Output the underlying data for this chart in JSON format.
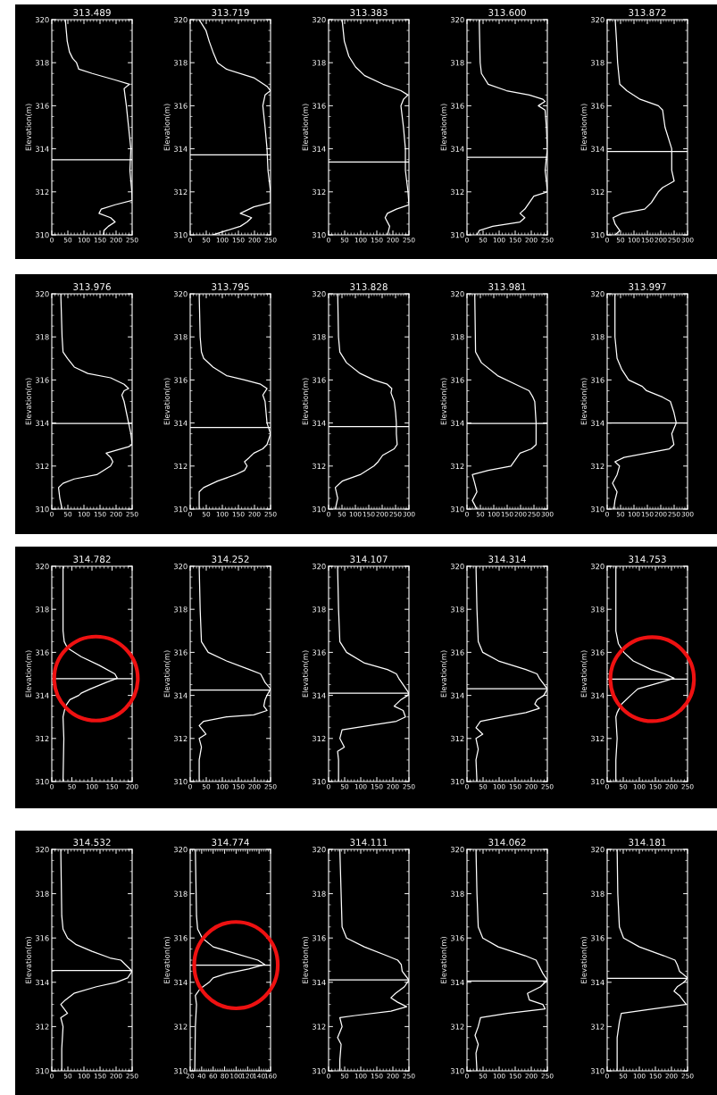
{
  "chart_data": [
    {
      "type": "line",
      "title": "313.489",
      "ylabel": "Elevation(m)",
      "xlim": [
        0,
        250
      ],
      "xticks": [
        0,
        50,
        100,
        150,
        200,
        250
      ],
      "ylim": [
        310,
        320
      ],
      "yticks": [
        310,
        312,
        314,
        316,
        318,
        320
      ],
      "ref_lines": [
        {
          "axis": "y",
          "value": 313.489,
          "color": "#ffffff"
        }
      ],
      "series": [
        {
          "color": "#ffffff",
          "x": [
            42,
            48,
            55,
            65,
            77,
            84,
            126,
            197,
            242,
            225,
            232,
            239,
            246,
            243,
            249,
            250,
            197,
            154,
            147,
            183,
            197,
            176,
            162,
            162
          ],
          "values": [
            320,
            319,
            318.5,
            318.2,
            318,
            317.7,
            317.5,
            317.2,
            317,
            316.8,
            316,
            315,
            314,
            313,
            312,
            311.6,
            311.4,
            311.2,
            311,
            310.8,
            310.6,
            310.4,
            310.2,
            310
          ]
        }
      ]
    },
    {
      "type": "line",
      "title": "313.719",
      "ylabel": "Elevation(m)",
      "xlim": [
        0,
        250
      ],
      "xticks": [
        0,
        50,
        100,
        150,
        200,
        250
      ],
      "ylim": [
        310,
        320
      ],
      "yticks": [
        310,
        312,
        314,
        316,
        318,
        320
      ],
      "ref_lines": [
        {
          "axis": "y",
          "value": 313.719,
          "color": "#ffffff"
        }
      ],
      "series": [
        {
          "color": "#ffffff",
          "x": [
            28,
            49,
            59,
            71,
            85,
            113,
            198,
            239,
            250,
            233,
            226,
            233,
            239,
            242,
            250,
            250,
            198,
            156,
            191,
            177,
            156,
            113,
            71
          ],
          "values": [
            320,
            319.5,
            319,
            318.5,
            318,
            317.7,
            317.3,
            316.9,
            316.7,
            316.5,
            316,
            315,
            314,
            313,
            312,
            311.5,
            311.3,
            311,
            310.8,
            310.6,
            310.4,
            310.2,
            310
          ]
        }
      ]
    },
    {
      "type": "line",
      "title": "313.383",
      "ylabel": "Elevation(m)",
      "xlim": [
        0,
        250
      ],
      "xticks": [
        0,
        50,
        100,
        150,
        200,
        250
      ],
      "ylim": [
        310,
        320
      ],
      "yticks": [
        310,
        312,
        314,
        316,
        318,
        320
      ],
      "ref_lines": [
        {
          "axis": "y",
          "value": 313.383,
          "color": "#ffffff"
        }
      ],
      "series": [
        {
          "color": "#ffffff",
          "x": [
            42,
            49,
            63,
            84,
            112,
            169,
            225,
            247,
            233,
            225,
            233,
            239,
            239,
            247,
            250,
            211,
            183,
            176,
            190,
            183
          ],
          "values": [
            320,
            319,
            318.3,
            317.8,
            317.4,
            317,
            316.7,
            316.5,
            316.3,
            316,
            315,
            314,
            313,
            312,
            311.4,
            311.2,
            311,
            310.8,
            310.4,
            310
          ]
        }
      ]
    },
    {
      "type": "line",
      "title": "313.600",
      "ylabel": "Elevation(m)",
      "xlim": [
        0,
        250
      ],
      "xticks": [
        0,
        50,
        100,
        150,
        200,
        250
      ],
      "ylim": [
        310,
        320
      ],
      "yticks": [
        310,
        312,
        314,
        316,
        318,
        320
      ],
      "ref_lines": [
        {
          "axis": "y",
          "value": 313.6,
          "color": "#ffffff"
        }
      ],
      "series": [
        {
          "color": "#ffffff",
          "x": [
            38,
            41,
            45,
            66,
            123,
            194,
            236,
            243,
            222,
            243,
            247,
            250,
            243,
            247,
            250,
            208,
            194,
            180,
            165,
            180,
            165,
            80,
            38,
            31
          ],
          "values": [
            320,
            318,
            317.5,
            317,
            316.7,
            316.5,
            316.3,
            316.2,
            316,
            315.8,
            315,
            314,
            313,
            312.5,
            312,
            311.8,
            311.5,
            311.2,
            311,
            310.8,
            310.6,
            310.4,
            310.2,
            310
          ]
        }
      ]
    },
    {
      "type": "line",
      "title": "313.872",
      "ylabel": "Elevation(m)",
      "xlim": [
        0,
        300
      ],
      "xticks": [
        0,
        50,
        100,
        150,
        200,
        250,
        300
      ],
      "ylim": [
        310,
        320
      ],
      "yticks": [
        310,
        312,
        314,
        316,
        318,
        320
      ],
      "ref_lines": [
        {
          "axis": "y",
          "value": 313.872,
          "color": "#ffffff"
        }
      ],
      "series": [
        {
          "color": "#ffffff",
          "x": [
            30,
            35,
            39,
            47,
            73,
            123,
            191,
            207,
            216,
            241,
            241,
            250,
            207,
            191,
            165,
            140,
            56,
            22,
            30,
            47,
            30
          ],
          "values": [
            320,
            319,
            318,
            317,
            316.7,
            316.3,
            316,
            315.8,
            315,
            314,
            313,
            312.5,
            312.2,
            312,
            311.5,
            311.2,
            311,
            310.8,
            310.5,
            310.2,
            310
          ]
        }
      ]
    },
    {
      "type": "line",
      "title": "313.976",
      "ylabel": "Elevation(m)",
      "xlim": [
        0,
        250
      ],
      "xticks": [
        0,
        50,
        100,
        150,
        200,
        250
      ],
      "ylim": [
        310,
        320
      ],
      "yticks": [
        310,
        312,
        314,
        316,
        318,
        320
      ],
      "ref_lines": [
        {
          "axis": "y",
          "value": 313.976,
          "color": "#ffffff"
        }
      ],
      "series": [
        {
          "color": "#ffffff",
          "x": [
            28,
            32,
            35,
            49,
            70,
            112,
            183,
            225,
            239,
            225,
            218,
            225,
            239,
            246,
            250,
            239,
            169,
            183,
            190,
            183,
            140,
            70,
            35,
            21,
            25,
            32
          ],
          "values": [
            320,
            318,
            317.3,
            317,
            316.6,
            316.3,
            316.1,
            315.8,
            315.6,
            315.5,
            315.3,
            315,
            314,
            313.5,
            313,
            312.9,
            312.6,
            312.4,
            312.2,
            312,
            311.6,
            311.4,
            311.2,
            311,
            310.5,
            310
          ]
        }
      ]
    },
    {
      "type": "line",
      "title": "313.795",
      "ylabel": "Elevation(m)",
      "xlim": [
        0,
        250
      ],
      "xticks": [
        0,
        50,
        100,
        150,
        200,
        250
      ],
      "ylim": [
        310,
        320
      ],
      "yticks": [
        310,
        312,
        314,
        316,
        318,
        320
      ],
      "ref_lines": [
        {
          "axis": "y",
          "value": 313.795,
          "color": "#ffffff"
        }
      ],
      "series": [
        {
          "color": "#ffffff",
          "x": [
            28,
            31,
            35,
            42,
            71,
            113,
            169,
            219,
            239,
            226,
            233,
            239,
            250,
            239,
            226,
            198,
            184,
            169,
            177,
            169,
            141,
            85,
            42,
            28,
            28
          ],
          "values": [
            320,
            318,
            317.3,
            317,
            316.6,
            316.2,
            316,
            315.8,
            315.6,
            315.3,
            315,
            314,
            313.5,
            313,
            312.8,
            312.6,
            312.4,
            312.2,
            312,
            311.8,
            311.6,
            311.3,
            311,
            310.8,
            310
          ]
        }
      ]
    },
    {
      "type": "line",
      "title": "313.828",
      "ylabel": "Elevation(m)",
      "xlim": [
        0,
        300
      ],
      "xticks": [
        0,
        50,
        100,
        150,
        200,
        250,
        300
      ],
      "ylim": [
        310,
        320
      ],
      "yticks": [
        310,
        312,
        314,
        316,
        318,
        320
      ],
      "ref_lines": [
        {
          "axis": "y",
          "value": 313.828,
          "color": "#ffffff"
        }
      ],
      "series": [
        {
          "color": "#ffffff",
          "x": [
            34,
            37,
            42,
            67,
            118,
            169,
            219,
            236,
            233,
            245,
            250,
            253,
            253,
            256,
            245,
            202,
            185,
            169,
            118,
            51,
            25,
            34,
            25
          ],
          "values": [
            320,
            318,
            317.3,
            316.8,
            316.3,
            316,
            315.8,
            315.6,
            315.4,
            315,
            314.5,
            314,
            313.5,
            313,
            312.8,
            312.5,
            312.2,
            312,
            311.6,
            311.3,
            311,
            310.5,
            310
          ]
        }
      ]
    },
    {
      "type": "line",
      "title": "313.981",
      "ylabel": "Elevation(m)",
      "xlim": [
        0,
        300
      ],
      "xticks": [
        0,
        50,
        100,
        150,
        200,
        250,
        300
      ],
      "ylim": [
        310,
        320
      ],
      "yticks": [
        310,
        312,
        314,
        316,
        318,
        320
      ],
      "ref_lines": [
        {
          "axis": "y",
          "value": 313.981,
          "color": "#ffffff"
        }
      ],
      "series": [
        {
          "color": "#ffffff",
          "x": [
            29,
            32,
            54,
            114,
            181,
            232,
            246,
            253,
            258,
            258,
            241,
            198,
            181,
            164,
            80,
            20,
            29,
            37,
            20,
            37
          ],
          "values": [
            320,
            317.3,
            316.8,
            316.2,
            315.8,
            315.5,
            315.2,
            315,
            314,
            313,
            312.8,
            312.6,
            312.3,
            312,
            311.8,
            311.6,
            311.2,
            310.8,
            310.4,
            310
          ]
        }
      ]
    },
    {
      "type": "line",
      "title": "313.997",
      "ylabel": "Elevation(m)",
      "xlim": [
        0,
        300
      ],
      "xticks": [
        0,
        50,
        100,
        150,
        200,
        250,
        300
      ],
      "ylim": [
        310,
        320
      ],
      "yticks": [
        310,
        312,
        314,
        316,
        318,
        320
      ],
      "ref_lines": [
        {
          "axis": "y",
          "value": 313.997,
          "color": "#ffffff"
        }
      ],
      "series": [
        {
          "color": "#ffffff",
          "x": [
            29,
            29,
            37,
            54,
            80,
            131,
            147,
            207,
            236,
            249,
            258,
            241,
            249,
            232,
            147,
            63,
            29,
            46,
            37,
            20,
            37,
            29,
            25
          ],
          "values": [
            320,
            318,
            317,
            316.5,
            316,
            315.7,
            315.5,
            315.2,
            315,
            314.5,
            314,
            313.5,
            313,
            312.8,
            312.6,
            312.4,
            312.2,
            312,
            311.6,
            311.2,
            310.8,
            310.4,
            310
          ]
        }
      ]
    },
    {
      "type": "line",
      "title": "314.782",
      "ylabel": "Elevation(m)",
      "xlim": [
        0,
        200
      ],
      "xticks": [
        0,
        50,
        100,
        150,
        200
      ],
      "ylim": [
        310,
        320
      ],
      "yticks": [
        310,
        312,
        314,
        316,
        318,
        320
      ],
      "ref_lines": [
        {
          "axis": "y",
          "value": 314.782,
          "color": "#ffffff"
        }
      ],
      "series": [
        {
          "color": "#ffffff",
          "x": [
            28,
            28,
            31,
            39,
            73,
            118,
            157,
            163,
            135,
            96,
            73,
            67,
            45,
            34,
            28,
            30,
            28
          ],
          "values": [
            320,
            317,
            316.5,
            316.2,
            315.8,
            315.4,
            315,
            314.8,
            314.6,
            314.3,
            314.1,
            314,
            313.8,
            313.5,
            313,
            312,
            310
          ]
        }
      ]
    },
    {
      "type": "line",
      "title": "314.252",
      "ylabel": "Elevation(m)",
      "xlim": [
        0,
        250
      ],
      "xticks": [
        0,
        50,
        100,
        150,
        200,
        250
      ],
      "ylim": [
        310,
        320
      ],
      "yticks": [
        310,
        312,
        314,
        316,
        318,
        320
      ],
      "ref_lines": [
        {
          "axis": "y",
          "value": 314.252,
          "color": "#ffffff"
        }
      ],
      "series": [
        {
          "color": "#ffffff",
          "x": [
            28,
            31,
            35,
            56,
            113,
            184,
            219,
            226,
            233,
            250,
            239,
            233,
            229,
            239,
            198,
            113,
            42,
            28,
            49,
            28,
            35,
            28,
            28
          ],
          "values": [
            320,
            318,
            316.5,
            316,
            315.6,
            315.2,
            315,
            314.8,
            314.6,
            314.3,
            314,
            313.8,
            313.5,
            313.3,
            313.1,
            313,
            312.8,
            312.6,
            312.2,
            312,
            311.6,
            311,
            310
          ]
        }
      ]
    },
    {
      "type": "line",
      "title": "314.107",
      "ylabel": "Elevation(m)",
      "xlim": [
        0,
        250
      ],
      "xticks": [
        0,
        50,
        100,
        150,
        200,
        250
      ],
      "ylim": [
        310,
        320
      ],
      "yticks": [
        310,
        312,
        314,
        316,
        318,
        320
      ],
      "ref_lines": [
        {
          "axis": "y",
          "value": 314.107,
          "color": "#ffffff"
        }
      ],
      "series": [
        {
          "color": "#ffffff",
          "x": [
            28,
            31,
            35,
            56,
            112,
            183,
            211,
            218,
            232,
            250,
            246,
            225,
            204,
            232,
            239,
            211,
            126,
            42,
            35,
            49,
            28,
            31,
            31
          ],
          "values": [
            320,
            318,
            316.5,
            316,
            315.5,
            315.2,
            315,
            314.8,
            314.5,
            314.1,
            314,
            313.8,
            313.5,
            313.3,
            313,
            312.8,
            312.6,
            312.4,
            312,
            311.6,
            311.4,
            311,
            310
          ]
        }
      ]
    },
    {
      "type": "line",
      "title": "314.314",
      "ylabel": "Elevation(m)",
      "xlim": [
        0,
        250
      ],
      "xticks": [
        0,
        50,
        100,
        150,
        200,
        250
      ],
      "ylim": [
        310,
        320
      ],
      "yticks": [
        310,
        312,
        314,
        316,
        318,
        320
      ],
      "ref_lines": [
        {
          "axis": "y",
          "value": 314.314,
          "color": "#ffffff"
        }
      ],
      "series": [
        {
          "color": "#ffffff",
          "x": [
            28,
            31,
            35,
            49,
            98,
            183,
            218,
            225,
            250,
            239,
            218,
            211,
            225,
            183,
            112,
            42,
            28,
            49,
            28,
            35,
            28,
            31
          ],
          "values": [
            320,
            318,
            316.5,
            316,
            315.6,
            315.2,
            315,
            314.8,
            314.3,
            314,
            313.8,
            313.6,
            313.4,
            313.2,
            313,
            312.8,
            312.5,
            312.2,
            312,
            311.5,
            311,
            310
          ]
        }
      ]
    },
    {
      "type": "line",
      "title": "314.753",
      "ylabel": "Elevation(m)",
      "xlim": [
        0,
        250
      ],
      "xticks": [
        0,
        50,
        100,
        150,
        200,
        250
      ],
      "ylim": [
        310,
        320
      ],
      "yticks": [
        310,
        312,
        314,
        316,
        318,
        320
      ],
      "ref_lines": [
        {
          "axis": "y",
          "value": 314.753,
          "color": "#ffffff"
        }
      ],
      "series": [
        {
          "color": "#ffffff",
          "x": [
            27,
            27,
            35,
            52,
            81,
            137,
            179,
            208,
            165,
            95,
            73,
            45,
            31,
            27,
            31,
            27,
            27
          ],
          "values": [
            320,
            317,
            316.4,
            316,
            315.6,
            315.2,
            315,
            314.8,
            314.6,
            314.3,
            314,
            313.6,
            313.2,
            313,
            312,
            311,
            310
          ]
        }
      ]
    },
    {
      "type": "line",
      "title": "314.532",
      "ylabel": "Elevation(m)",
      "xlim": [
        0,
        250
      ],
      "xticks": [
        0,
        50,
        100,
        150,
        200,
        250
      ],
      "ylim": [
        310,
        320
      ],
      "yticks": [
        310,
        312,
        314,
        316,
        318,
        320
      ],
      "ref_lines": [
        {
          "axis": "y",
          "value": 314.532,
          "color": "#ffffff"
        }
      ],
      "series": [
        {
          "color": "#ffffff",
          "x": [
            28,
            31,
            35,
            49,
            76,
            125,
            181,
            215,
            229,
            250,
            236,
            201,
            139,
            69,
            42,
            28,
            49,
            28,
            35,
            31,
            31
          ],
          "values": [
            320,
            317,
            316.4,
            316,
            315.7,
            315.4,
            315.1,
            315,
            314.8,
            314.5,
            314.2,
            314,
            313.8,
            313.5,
            313.2,
            313,
            312.6,
            312.4,
            312,
            311,
            310
          ]
        }
      ]
    },
    {
      "type": "line",
      "title": "314.774",
      "ylabel": "Elevation(m)",
      "xlim": [
        20,
        160
      ],
      "xticks": [
        20,
        40,
        60,
        80,
        100,
        120,
        140,
        160
      ],
      "ylim": [
        310,
        320
      ],
      "yticks": [
        310,
        312,
        314,
        316,
        318,
        320
      ],
      "ref_lines": [
        {
          "axis": "y",
          "value": 314.774,
          "color": "#ffffff"
        }
      ],
      "series": [
        {
          "color": "#ffffff",
          "x": [
            29,
            31,
            33,
            41,
            60,
            99,
            138,
            150,
            122,
            84,
            60,
            53,
            37,
            29,
            31,
            29,
            28
          ],
          "values": [
            320,
            317,
            316.4,
            316,
            315.6,
            315.3,
            315,
            314.8,
            314.6,
            314.4,
            314.2,
            314,
            313.7,
            313.4,
            313,
            312,
            310
          ]
        }
      ]
    },
    {
      "type": "line",
      "title": "314.111",
      "ylabel": "Elevation(m)",
      "xlim": [
        0,
        250
      ],
      "xticks": [
        0,
        50,
        100,
        150,
        200,
        250
      ],
      "ylim": [
        310,
        320
      ],
      "yticks": [
        310,
        312,
        314,
        316,
        318,
        320
      ],
      "ref_lines": [
        {
          "axis": "y",
          "value": 314.111,
          "color": "#ffffff"
        }
      ],
      "series": [
        {
          "color": "#ffffff",
          "x": [
            35,
            39,
            42,
            56,
            111,
            181,
            215,
            226,
            229,
            250,
            236,
            208,
            194,
            215,
            243,
            194,
            83,
            35,
            42,
            28,
            39,
            35,
            35
          ],
          "values": [
            320,
            318,
            316.5,
            316,
            315.6,
            315.2,
            315,
            314.8,
            314.5,
            314.1,
            313.8,
            313.5,
            313.3,
            313.1,
            312.9,
            312.7,
            312.5,
            312.4,
            312,
            311.5,
            311.2,
            310.5,
            310
          ]
        }
      ]
    },
    {
      "type": "line",
      "title": "314.062",
      "ylabel": "Elevation(m)",
      "xlim": [
        0,
        250
      ],
      "xticks": [
        0,
        50,
        100,
        150,
        200,
        250
      ],
      "ylim": [
        310,
        320
      ],
      "yticks": [
        310,
        312,
        314,
        316,
        318,
        320
      ],
      "ref_lines": [
        {
          "axis": "y",
          "value": 314.062,
          "color": "#ffffff"
        }
      ],
      "series": [
        {
          "color": "#ffffff",
          "x": [
            28,
            31,
            35,
            49,
            97,
            181,
            215,
            222,
            236,
            250,
            229,
            188,
            194,
            236,
            243,
            125,
            42,
            35,
            25,
            35,
            28,
            31
          ],
          "values": [
            320,
            318,
            316.5,
            316,
            315.6,
            315.2,
            315,
            314.8,
            314.4,
            314.1,
            313.8,
            313.5,
            313.2,
            313,
            312.8,
            312.6,
            312.4,
            312,
            311.6,
            311.2,
            310.8,
            310
          ]
        }
      ]
    },
    {
      "type": "line",
      "title": "314.181",
      "ylabel": "Elevation(m)",
      "xlim": [
        0,
        250
      ],
      "xticks": [
        0,
        50,
        100,
        150,
        200,
        250
      ],
      "ylim": [
        310,
        320
      ],
      "yticks": [
        310,
        312,
        314,
        316,
        318,
        320
      ],
      "ref_lines": [
        {
          "axis": "y",
          "value": 314.181,
          "color": "#ffffff"
        }
      ],
      "series": [
        {
          "color": "#ffffff",
          "x": [
            31,
            33,
            38,
            51,
            100,
            176,
            211,
            218,
            225,
            250,
            239,
            218,
            208,
            225,
            246,
            142,
            44,
            38,
            31,
            31
          ],
          "values": [
            320,
            318,
            316.5,
            316,
            315.6,
            315.2,
            315,
            314.8,
            314.5,
            314.2,
            314,
            313.8,
            313.6,
            313.4,
            313,
            312.8,
            312.6,
            312.2,
            311.5,
            310
          ]
        }
      ]
    }
  ]
}
